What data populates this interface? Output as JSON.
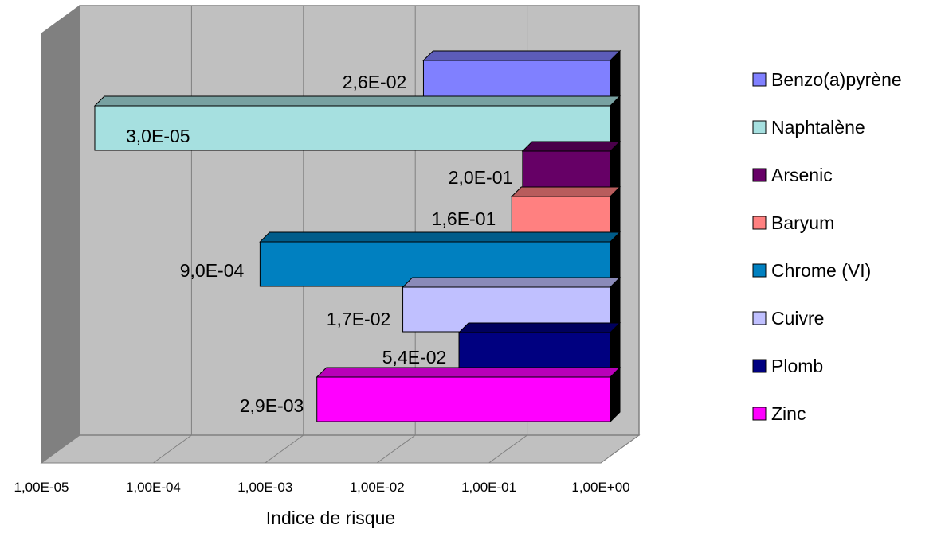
{
  "chart_data": {
    "type": "bar",
    "orientation": "horizontal",
    "three_d": true,
    "title": "",
    "xlabel": "Indice de risque",
    "ylabel": "",
    "x_scale": "log",
    "xlim": [
      1e-05,
      1
    ],
    "x_ticks": [
      "1,00E-05",
      "1,00E-04",
      "1,00E-03",
      "1,00E-02",
      "1,00E-01",
      "1,00E+00"
    ],
    "grid": true,
    "legend_position": "right",
    "series": [
      {
        "name": "Benzo(a)pyrène",
        "value": 0.026,
        "label": "2,6E-02",
        "color": "#8080ff"
      },
      {
        "name": "Naphtalène",
        "value": 3e-05,
        "label": "3,0E-05",
        "color": "#a6e0e0"
      },
      {
        "name": "Arsenic",
        "value": 0.2,
        "label": "2,0E-01",
        "color": "#660066"
      },
      {
        "name": "Baryum",
        "value": 0.16,
        "label": "1,6E-01",
        "color": "#ff8080"
      },
      {
        "name": "Chrome (VI)",
        "value": 0.0009,
        "label": "9,0E-04",
        "color": "#0080c0"
      },
      {
        "name": "Cuivre",
        "value": 0.017,
        "label": "1,7E-02",
        "color": "#c0c0ff"
      },
      {
        "name": "Plomb",
        "value": 0.054,
        "label": "5,4E-02",
        "color": "#000080"
      },
      {
        "name": "Zinc",
        "value": 0.0029,
        "label": "2,9E-03",
        "color": "#ff00ff"
      }
    ]
  }
}
